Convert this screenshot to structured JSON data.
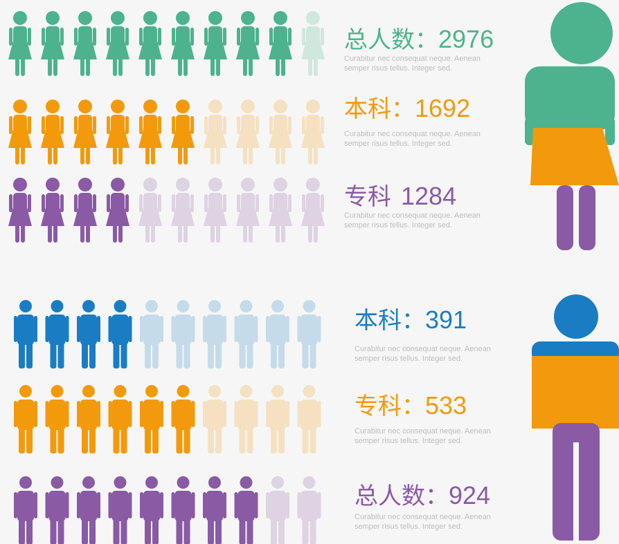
{
  "female": {
    "rows": [
      {
        "label": "总人数：",
        "value": 2976,
        "filled": 9,
        "total": 10,
        "color": "#4db38e",
        "description": "Curabitur nec consequat neque. Aenean semper risus tellus. Integer sed."
      },
      {
        "label": "本科：",
        "value": 1692,
        "filled": 6,
        "total": 10,
        "color": "#f39a0c",
        "description": "Curabitur nec consequat neque. Aenean semper risus tellus. Integer sed."
      },
      {
        "label": "专科",
        "value": 1284,
        "filled": 4,
        "total": 10,
        "color": "#8a5aa5",
        "description": "Curabitur nec consequat neque. Aenean semper risus tellus. Integer sed."
      }
    ]
  },
  "male": {
    "rows": [
      {
        "label": "本科：",
        "value": 391,
        "filled": 4,
        "total": 10,
        "color": "#1a7dc4",
        "description": "Curabitur nec consequat neque. Aenean semper risus tellus. Integer sed."
      },
      {
        "label": "专科：",
        "value": 533,
        "filled": 6,
        "total": 10,
        "color": "#f39a0c",
        "description": "Curabitur nec consequat neque. Aenean semper risus tellus. Integer sed."
      },
      {
        "label": "总人数：",
        "value": 924,
        "filled": 8,
        "total": 10,
        "color": "#8a5aa5",
        "description": "Curabitur nec consequat neque. Aenean semper risus tellus. Integer sed."
      }
    ]
  }
}
